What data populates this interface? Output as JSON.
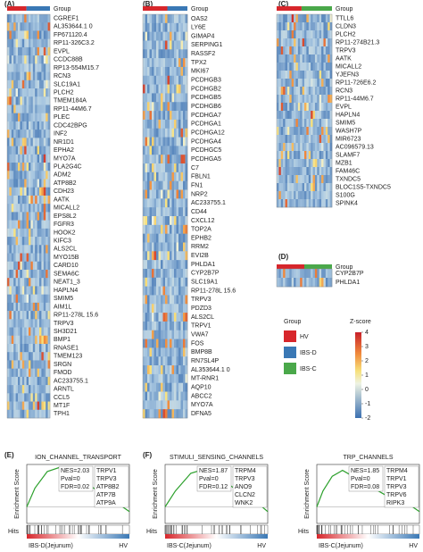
{
  "heatmaps": [
    {
      "label": "(A)",
      "group_label": "Group",
      "group_colors": [
        "#d7262b",
        "#3a78b5"
      ],
      "split": 0.45,
      "genes": [
        "CGREF1",
        "AL353644.1 0",
        "FP671120.4",
        "RP11-326C3.2",
        "EVPL",
        "CCDC88B",
        "RP13-554M15.7",
        "RCN3",
        "SLC19A1",
        "PLCH2",
        "TMEM184A",
        "RP11-44M6.7",
        "PLEC",
        "CDC42BPG",
        "INF2",
        "NR1D1",
        "EPHA2",
        "MYO7A",
        "PLA2G4C",
        "ADM2",
        "ATP8B2",
        "CDH23",
        "AATK",
        "MICALL2",
        "EPS8L2",
        "FGFR3",
        "HOOK2",
        "KIFC3",
        "ALS2CL",
        "MYO15B",
        "CARD10",
        "SEMA6C",
        "NEAT1_3",
        "HAPLN4",
        "SMIM5",
        "AIM1L",
        "RP11-278L 15.6",
        "TRPV3",
        "SH3D21",
        "BMP1",
        "RNASE1",
        "TMEM123",
        "SRGN",
        "FMOD",
        "AC233755.1",
        "ARNTL",
        "CCL5",
        "MT1F",
        "TPH1"
      ]
    },
    {
      "label": "(B)",
      "group_label": "Group",
      "group_colors": [
        "#d7262b",
        "#3a78b5"
      ],
      "split": 0.55,
      "genes": [
        "OAS2",
        "LY6E",
        "GIMAP4",
        "SERPING1",
        "RASSF2",
        "TPX2",
        "MKI67",
        "PCDHGB3",
        "PCDHGB2",
        "PCDHGB5",
        "PCDHGB6",
        "PCDHGA7",
        "PCDHGA1",
        "PCDHGA12",
        "PCDHGA4",
        "PCDHGC5",
        "PCDHGA5",
        "C7",
        "FBLN1",
        "FN1",
        "NRP2",
        "AC233755.1",
        "CD44",
        "CXCL12",
        "TOP2A",
        "EPHB2",
        "RRM2",
        "EVI2B",
        "PHLDA1",
        "CYP2B7P",
        "SLC19A1",
        "RP11-278L 15.6",
        "TRPV3",
        "PDZD3",
        "ALS2CL",
        "TRPV1",
        "VWA7",
        "FOS",
        "BMP8B",
        "RN7SL4P",
        "AL353644.1 0",
        "MT-RNR1",
        "AQP10",
        "ABCC2",
        "MYO7A",
        "DFNA5"
      ]
    },
    {
      "label": "(C)",
      "group_label": "Group",
      "group_colors": [
        "#d7262b",
        "#4aa84a"
      ],
      "split": 0.45,
      "genes": [
        "TTLL6",
        "CLDN3",
        "PLCH2",
        "RP11-274B21.3",
        "TRPV3",
        "AATK",
        "MICALL2",
        "YJEFN3",
        "RP11-726E6.2",
        "RCN3",
        "RP11-44M6.7",
        "EVPL",
        "HAPLN4",
        "SMIM5",
        "WASH7P",
        "MIR6723",
        "AC096579.13",
        "SLAMF7",
        "MZB1",
        "FAM46C",
        "TXNDC5",
        "BLOC1S5-TXNDC5",
        "S100G",
        "SPINK4"
      ]
    },
    {
      "label": "(D)",
      "group_label": "Group",
      "group_colors": [
        "#d7262b",
        "#4aa84a"
      ],
      "split": 0.5,
      "genes": [
        "CYP2B7P",
        "PHLDA1"
      ]
    }
  ],
  "highlight": {
    "gene": "TRPV3",
    "color": "#e0252a"
  },
  "legend": {
    "group_title": "Group",
    "groups": [
      {
        "name": "HV",
        "color": "#d7262b"
      },
      {
        "name": "IBS-D",
        "color": "#3a78b5"
      },
      {
        "name": "IBS-C",
        "color": "#4aa84a"
      }
    ],
    "zscore_title": "Z-score",
    "zscore_ticks": [
      4,
      3,
      2,
      1,
      0,
      -1,
      -2
    ]
  },
  "gsea": [
    {
      "label": "(E)",
      "title": "ION_CHANNEL_TRANSPORT",
      "y_label": "Enrichment Score",
      "stats": [
        "NES=2.03",
        "Pval=0",
        "FDR=0.02"
      ],
      "genes": [
        "TRPV1",
        "TRPV3",
        "ATP8B2",
        "ATP7B",
        "ATP9A"
      ],
      "hits_label": "Hits",
      "x_left": "IBS-D(Jejunum)",
      "x_right": "HV"
    },
    {
      "label": "(F)",
      "title": "STIMULI_SENSING_CHANNELS",
      "y_label": "Enrichment Score",
      "stats": [
        "NES=1.87",
        "Pval=0",
        "FDR=0.12"
      ],
      "genes": [
        "TRPM4",
        "TRPV3",
        "ANO9",
        "CLCN2",
        "WNK2"
      ],
      "hits_label": "Hits",
      "x_left": "IBS-C(Jejunum)",
      "x_right": "HV"
    },
    {
      "title": "TRP_CHANNELS",
      "y_label": "Enrichment Score",
      "stats": [
        "NES=1.85",
        "Pval=0",
        "FDR=0.08"
      ],
      "genes": [
        "TRPM4",
        "TRPV1",
        "TRPV3",
        "TRPV6",
        "RIPK3"
      ],
      "hits_label": "Hits",
      "x_left": "IBS-C(Jejunum)",
      "x_right": "HV"
    }
  ]
}
